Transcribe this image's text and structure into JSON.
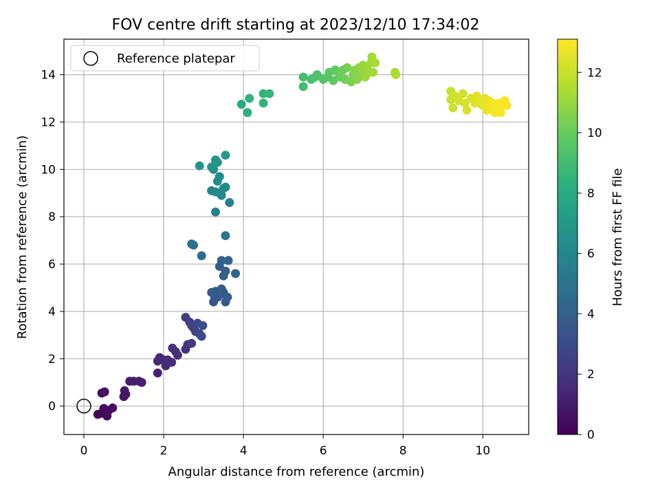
{
  "chart_data": {
    "type": "scatter",
    "title": "FOV centre drift starting at 2023/12/10 17:34:02",
    "xlabel": "Angular distance from reference (arcmin)",
    "ylabel": "Rotation from reference (arcmin)",
    "xlim": [
      -0.5,
      11.15
    ],
    "ylim": [
      -1.2,
      15.5
    ],
    "xticks": [
      "0",
      "2",
      "4",
      "6",
      "8",
      "10"
    ],
    "yticks": [
      "0",
      "2",
      "4",
      "6",
      "8",
      "10",
      "12",
      "14"
    ],
    "grid": true,
    "legend": {
      "placement": "top-left",
      "entries": [
        "Reference platepar"
      ]
    },
    "reference_point": {
      "x": 0,
      "y": 0
    },
    "colorbar": {
      "label": "Hours from first FF file",
      "min": 0,
      "max": 13.1,
      "colormap": "viridis",
      "ticks": [
        "0",
        "2",
        "4",
        "6",
        "8",
        "10",
        "12"
      ]
    },
    "points": [
      [
        0.35,
        -0.35,
        0.1
      ],
      [
        0.45,
        -0.3,
        0.2
      ],
      [
        0.5,
        -0.1,
        0.3
      ],
      [
        0.58,
        -0.42,
        0.35
      ],
      [
        0.62,
        -0.18,
        0.4
      ],
      [
        0.72,
        -0.08,
        0.45
      ],
      [
        0.45,
        0.55,
        0.5
      ],
      [
        0.52,
        0.6,
        0.6
      ],
      [
        1.0,
        0.4,
        0.8
      ],
      [
        1.02,
        0.65,
        0.9
      ],
      [
        1.05,
        0.5,
        0.85
      ],
      [
        1.15,
        1.05,
        1.0
      ],
      [
        1.25,
        1.05,
        1.1
      ],
      [
        1.38,
        1.05,
        1.15
      ],
      [
        1.45,
        1.0,
        1.2
      ],
      [
        1.85,
        1.4,
        1.3
      ],
      [
        1.85,
        1.9,
        1.4
      ],
      [
        1.9,
        2.05,
        1.45
      ],
      [
        2.0,
        1.95,
        1.5
      ],
      [
        2.05,
        1.7,
        1.55
      ],
      [
        2.1,
        1.95,
        1.6
      ],
      [
        2.2,
        1.85,
        1.7
      ],
      [
        2.22,
        2.45,
        1.75
      ],
      [
        2.3,
        2.3,
        1.8
      ],
      [
        2.35,
        2.15,
        1.85
      ],
      [
        2.55,
        2.4,
        2.0
      ],
      [
        2.6,
        2.6,
        2.1
      ],
      [
        2.7,
        2.65,
        2.2
      ],
      [
        2.55,
        3.75,
        2.3
      ],
      [
        2.65,
        3.55,
        2.4
      ],
      [
        2.7,
        3.4,
        2.5
      ],
      [
        2.75,
        3.3,
        2.6
      ],
      [
        2.8,
        3.15,
        2.7
      ],
      [
        2.9,
        3.05,
        2.8
      ],
      [
        2.95,
        2.95,
        2.9
      ],
      [
        2.85,
        3.5,
        3.0
      ],
      [
        2.98,
        3.4,
        3.1
      ],
      [
        3.25,
        4.4,
        3.4
      ],
      [
        3.28,
        4.55,
        3.45
      ],
      [
        3.3,
        4.85,
        3.5
      ],
      [
        3.35,
        4.6,
        3.55
      ],
      [
        3.4,
        4.7,
        3.6
      ],
      [
        3.45,
        4.95,
        3.65
      ],
      [
        3.5,
        4.8,
        3.7
      ],
      [
        3.55,
        4.4,
        3.75
      ],
      [
        3.2,
        4.8,
        3.8
      ],
      [
        3.6,
        4.6,
        3.85
      ],
      [
        3.4,
        5.9,
        3.9
      ],
      [
        3.45,
        6.15,
        3.95
      ],
      [
        3.5,
        5.5,
        4.0
      ],
      [
        3.55,
        5.7,
        4.05
      ],
      [
        3.62,
        6.15,
        4.1
      ],
      [
        3.8,
        5.6,
        4.15
      ],
      [
        2.95,
        6.35,
        4.4
      ],
      [
        2.7,
        6.85,
        4.7
      ],
      [
        2.75,
        6.8,
        4.8
      ],
      [
        3.55,
        7.2,
        5.0
      ],
      [
        3.3,
        8.2,
        5.6
      ],
      [
        3.65,
        8.6,
        5.7
      ],
      [
        3.2,
        9.1,
        5.9
      ],
      [
        3.3,
        9.05,
        6.0
      ],
      [
        3.4,
        9.0,
        6.05
      ],
      [
        3.45,
        8.9,
        6.1
      ],
      [
        3.5,
        9.2,
        6.15
      ],
      [
        3.55,
        9.25,
        6.2
      ],
      [
        3.35,
        9.5,
        6.3
      ],
      [
        3.4,
        9.7,
        6.4
      ],
      [
        3.25,
        10.0,
        6.5
      ],
      [
        3.35,
        10.3,
        6.6
      ],
      [
        3.2,
        10.1,
        6.7
      ],
      [
        2.9,
        10.15,
        6.8
      ],
      [
        3.3,
        10.4,
        6.9
      ],
      [
        3.55,
        10.6,
        7.0
      ],
      [
        3.95,
        12.75,
        8.0
      ],
      [
        4.1,
        12.4,
        8.3
      ],
      [
        4.15,
        13.0,
        8.4
      ],
      [
        4.5,
        12.8,
        8.5
      ],
      [
        4.5,
        13.2,
        8.6
      ],
      [
        4.65,
        13.2,
        8.7
      ],
      [
        5.5,
        13.5,
        9.0
      ],
      [
        5.5,
        13.9,
        9.1
      ],
      [
        5.7,
        13.8,
        9.2
      ],
      [
        5.8,
        13.9,
        9.3
      ],
      [
        5.85,
        14.0,
        9.4
      ],
      [
        6.0,
        13.8,
        9.5
      ],
      [
        6.1,
        13.9,
        9.6
      ],
      [
        6.15,
        14.1,
        9.7
      ],
      [
        6.25,
        13.75,
        9.8
      ],
      [
        6.3,
        14.2,
        9.9
      ],
      [
        6.4,
        13.9,
        10.0
      ],
      [
        6.5,
        14.2,
        10.1
      ],
      [
        6.55,
        13.8,
        10.2
      ],
      [
        6.6,
        14.3,
        10.3
      ],
      [
        6.7,
        13.7,
        10.4
      ],
      [
        6.75,
        14.0,
        10.5
      ],
      [
        6.8,
        14.2,
        10.6
      ],
      [
        6.85,
        13.8,
        10.7
      ],
      [
        6.9,
        14.3,
        10.8
      ],
      [
        6.95,
        14.1,
        10.9
      ],
      [
        7.0,
        14.4,
        11.0
      ],
      [
        7.05,
        13.9,
        11.05
      ],
      [
        7.1,
        14.3,
        11.1
      ],
      [
        7.15,
        14.1,
        11.15
      ],
      [
        7.2,
        14.5,
        11.2
      ],
      [
        7.22,
        14.75,
        11.25
      ],
      [
        7.25,
        14.1,
        11.3
      ],
      [
        7.3,
        14.5,
        11.35
      ],
      [
        7.8,
        14.1,
        11.4
      ],
      [
        7.82,
        14.0,
        11.45
      ],
      [
        9.2,
        13.3,
        12.0
      ],
      [
        9.2,
        12.95,
        12.05
      ],
      [
        9.25,
        12.6,
        12.1
      ],
      [
        9.3,
        13.1,
        12.15
      ],
      [
        9.4,
        12.9,
        12.2
      ],
      [
        9.5,
        13.2,
        12.25
      ],
      [
        9.55,
        12.8,
        12.3
      ],
      [
        9.6,
        12.5,
        12.35
      ],
      [
        9.7,
        13.0,
        12.4
      ],
      [
        9.8,
        12.8,
        12.45
      ],
      [
        9.85,
        13.1,
        12.5
      ],
      [
        9.9,
        12.8,
        12.55
      ],
      [
        10.0,
        12.7,
        12.6
      ],
      [
        10.05,
        13.0,
        12.65
      ],
      [
        10.1,
        12.5,
        12.7
      ],
      [
        10.15,
        12.9,
        12.75
      ],
      [
        10.2,
        12.6,
        12.8
      ],
      [
        10.25,
        12.8,
        12.85
      ],
      [
        10.3,
        12.4,
        12.9
      ],
      [
        10.35,
        12.6,
        12.95
      ],
      [
        10.4,
        12.8,
        13.0
      ],
      [
        10.45,
        12.4,
        13.05
      ],
      [
        10.5,
        12.7,
        13.1
      ],
      [
        10.55,
        12.9,
        12.95
      ],
      [
        10.6,
        12.7,
        13.0
      ]
    ]
  }
}
